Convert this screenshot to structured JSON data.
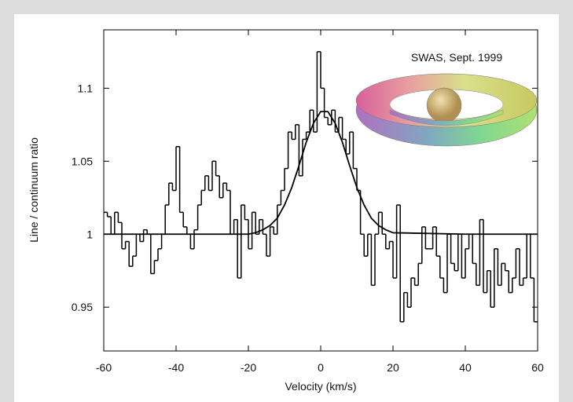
{
  "chart_data": {
    "type": "step",
    "xlabel": "Velocity (km/s)",
    "ylabel": "Line / continuum ratio",
    "annotation": "SWAS, Sept. 1999",
    "xlim": [
      -60,
      60
    ],
    "ylim": [
      0.92,
      1.14
    ],
    "xticks": [
      -60,
      -40,
      -20,
      0,
      20,
      40,
      60
    ],
    "yticks": [
      0.95,
      1,
      1.05,
      1.1
    ],
    "color": "#000000",
    "series": [
      {
        "x": [
          -59.5,
          -58.5,
          -57.5,
          -56.5,
          -55.5,
          -54.5,
          -53.5,
          -52.5,
          -51.5,
          -50.5,
          -49.5,
          -48.5,
          -47.5,
          -46.5,
          -45.5,
          -44.5,
          -43.5,
          -42.5,
          -41.5,
          -40.5,
          -39.5,
          -38.5,
          -37.5,
          -36.5,
          -35.5,
          -34.5,
          -33.5,
          -32.5,
          -31.5,
          -30.5,
          -29.5,
          -28.5,
          -27.5,
          -26.5,
          -25.5,
          -24.5,
          -23.5,
          -22.5,
          -21.5,
          -20.5,
          -19.5,
          -18.5,
          -17.5,
          -16.5,
          -15.5,
          -14.5,
          -13.5,
          -12.5,
          -11.5,
          -10.5,
          -9.5,
          -8.5,
          -7.5,
          -6.5,
          -5.5,
          -4.5,
          -3.5,
          -2.5,
          -1.5,
          -0.5,
          0.5,
          1.5,
          2.5,
          3.5,
          4.5,
          5.5,
          6.5,
          7.5,
          8.5,
          9.5,
          10.5,
          11.5,
          12.5,
          13.5,
          14.5,
          15.5,
          16.5,
          17.5,
          18.5,
          19.5,
          20.5,
          21.5,
          22.5,
          23.5,
          24.5,
          25.5,
          26.5,
          27.5,
          28.5,
          29.5,
          30.5,
          31.5,
          32.5,
          33.5,
          34.5,
          35.5,
          36.5,
          37.5,
          38.5,
          39.5,
          40.5,
          41.5,
          42.5,
          43.5,
          44.5,
          45.5,
          46.5,
          47.5,
          48.5,
          49.5,
          50.5,
          51.5,
          52.5,
          53.5,
          54.5,
          55.5,
          56.5,
          57.5,
          58.5,
          59.5
        ],
        "values": [
          1.015,
          1.012,
          1.0,
          1.015,
          1.008,
          0.99,
          0.995,
          0.978,
          0.985,
          1.0,
          0.995,
          1.003,
          1.0,
          0.973,
          0.982,
          0.99,
          1.0,
          1.02,
          1.035,
          1.03,
          1.06,
          1.015,
          1.005,
          1.0,
          0.99,
          1.003,
          1.02,
          1.03,
          1.04,
          1.03,
          1.05,
          1.04,
          1.025,
          1.035,
          1.03,
          1.0,
          1.01,
          0.97,
          1.02,
          1.01,
          0.99,
          1.015,
          1.0,
          1.01,
          1.0,
          0.985,
          1.005,
          1.0,
          1.02,
          1.03,
          1.045,
          1.07,
          1.065,
          1.075,
          1.04,
          1.065,
          1.07,
          1.085,
          1.07,
          1.125,
          1.1,
          1.08,
          1.075,
          1.085,
          1.07,
          1.08,
          1.065,
          1.055,
          1.07,
          1.045,
          1.03,
          1.0,
          0.985,
          1.0,
          0.965,
          1.0,
          1.015,
          1.0,
          0.99,
          0.995,
          0.97,
          1.02,
          0.94,
          0.96,
          0.95,
          0.97,
          0.965,
          0.98,
          1.005,
          0.99,
          0.99,
          1.005,
          0.985,
          0.97,
          0.96,
          1.0,
          0.98,
          0.975,
          1.0,
          0.97,
          0.99,
          1.0,
          0.98,
          0.965,
          1.01,
          0.96,
          0.975,
          0.95,
          0.99,
          0.965,
          0.98,
          0.975,
          0.96,
          0.97,
          0.99,
          0.965,
          0.97,
          1.0,
          0.97,
          0.94
        ]
      },
      {
        "type": "line",
        "x": [
          -60,
          -40,
          -20,
          -18,
          -16,
          -14,
          -12,
          -10,
          -8,
          -6,
          -4,
          -2,
          0,
          2,
          4,
          6,
          8,
          10,
          12,
          14,
          16,
          18,
          20,
          40,
          60
        ],
        "values": [
          1.0,
          1.0,
          1.0,
          1.001,
          1.003,
          1.006,
          1.011,
          1.02,
          1.032,
          1.047,
          1.063,
          1.076,
          1.084,
          1.084,
          1.076,
          1.063,
          1.047,
          1.032,
          1.02,
          1.011,
          1.006,
          1.003,
          1.001,
          1.0,
          1.0
        ]
      }
    ]
  }
}
